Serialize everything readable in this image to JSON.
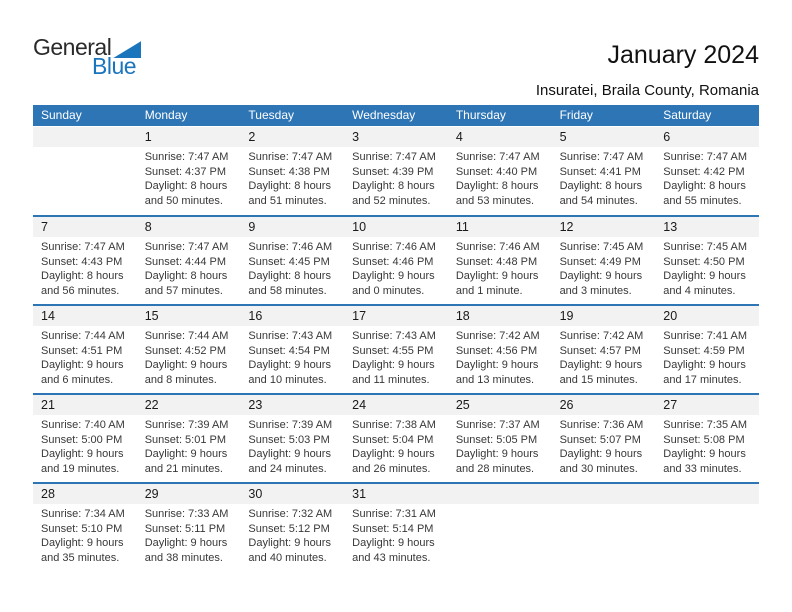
{
  "logo": {
    "general": "General",
    "blue": "Blue",
    "triangle_color": "#1b75bc"
  },
  "header": {
    "title": "January 2024",
    "subtitle": "Insuratei, Braila County, Romania"
  },
  "colors": {
    "header_bg": "#2E75B6",
    "week_divider": "#2E75B6",
    "day_band_bg": "#F2F2F2",
    "logo_blue": "#1b75bc"
  },
  "calendar": {
    "weekdays": [
      "Sunday",
      "Monday",
      "Tuesday",
      "Wednesday",
      "Thursday",
      "Friday",
      "Saturday"
    ],
    "weeks": [
      [
        {
          "day": "",
          "sunrise": "",
          "sunset": "",
          "daylight": ""
        },
        {
          "day": "1",
          "sunrise": "Sunrise: 7:47 AM",
          "sunset": "Sunset: 4:37 PM",
          "daylight": "Daylight: 8 hours and 50 minutes."
        },
        {
          "day": "2",
          "sunrise": "Sunrise: 7:47 AM",
          "sunset": "Sunset: 4:38 PM",
          "daylight": "Daylight: 8 hours and 51 minutes."
        },
        {
          "day": "3",
          "sunrise": "Sunrise: 7:47 AM",
          "sunset": "Sunset: 4:39 PM",
          "daylight": "Daylight: 8 hours and 52 minutes."
        },
        {
          "day": "4",
          "sunrise": "Sunrise: 7:47 AM",
          "sunset": "Sunset: 4:40 PM",
          "daylight": "Daylight: 8 hours and 53 minutes."
        },
        {
          "day": "5",
          "sunrise": "Sunrise: 7:47 AM",
          "sunset": "Sunset: 4:41 PM",
          "daylight": "Daylight: 8 hours and 54 minutes."
        },
        {
          "day": "6",
          "sunrise": "Sunrise: 7:47 AM",
          "sunset": "Sunset: 4:42 PM",
          "daylight": "Daylight: 8 hours and 55 minutes."
        }
      ],
      [
        {
          "day": "7",
          "sunrise": "Sunrise: 7:47 AM",
          "sunset": "Sunset: 4:43 PM",
          "daylight": "Daylight: 8 hours and 56 minutes."
        },
        {
          "day": "8",
          "sunrise": "Sunrise: 7:47 AM",
          "sunset": "Sunset: 4:44 PM",
          "daylight": "Daylight: 8 hours and 57 minutes."
        },
        {
          "day": "9",
          "sunrise": "Sunrise: 7:46 AM",
          "sunset": "Sunset: 4:45 PM",
          "daylight": "Daylight: 8 hours and 58 minutes."
        },
        {
          "day": "10",
          "sunrise": "Sunrise: 7:46 AM",
          "sunset": "Sunset: 4:46 PM",
          "daylight": "Daylight: 9 hours and 0 minutes."
        },
        {
          "day": "11",
          "sunrise": "Sunrise: 7:46 AM",
          "sunset": "Sunset: 4:48 PM",
          "daylight": "Daylight: 9 hours and 1 minute."
        },
        {
          "day": "12",
          "sunrise": "Sunrise: 7:45 AM",
          "sunset": "Sunset: 4:49 PM",
          "daylight": "Daylight: 9 hours and 3 minutes."
        },
        {
          "day": "13",
          "sunrise": "Sunrise: 7:45 AM",
          "sunset": "Sunset: 4:50 PM",
          "daylight": "Daylight: 9 hours and 4 minutes."
        }
      ],
      [
        {
          "day": "14",
          "sunrise": "Sunrise: 7:44 AM",
          "sunset": "Sunset: 4:51 PM",
          "daylight": "Daylight: 9 hours and 6 minutes."
        },
        {
          "day": "15",
          "sunrise": "Sunrise: 7:44 AM",
          "sunset": "Sunset: 4:52 PM",
          "daylight": "Daylight: 9 hours and 8 minutes."
        },
        {
          "day": "16",
          "sunrise": "Sunrise: 7:43 AM",
          "sunset": "Sunset: 4:54 PM",
          "daylight": "Daylight: 9 hours and 10 minutes."
        },
        {
          "day": "17",
          "sunrise": "Sunrise: 7:43 AM",
          "sunset": "Sunset: 4:55 PM",
          "daylight": "Daylight: 9 hours and 11 minutes."
        },
        {
          "day": "18",
          "sunrise": "Sunrise: 7:42 AM",
          "sunset": "Sunset: 4:56 PM",
          "daylight": "Daylight: 9 hours and 13 minutes."
        },
        {
          "day": "19",
          "sunrise": "Sunrise: 7:42 AM",
          "sunset": "Sunset: 4:57 PM",
          "daylight": "Daylight: 9 hours and 15 minutes."
        },
        {
          "day": "20",
          "sunrise": "Sunrise: 7:41 AM",
          "sunset": "Sunset: 4:59 PM",
          "daylight": "Daylight: 9 hours and 17 minutes."
        }
      ],
      [
        {
          "day": "21",
          "sunrise": "Sunrise: 7:40 AM",
          "sunset": "Sunset: 5:00 PM",
          "daylight": "Daylight: 9 hours and 19 minutes."
        },
        {
          "day": "22",
          "sunrise": "Sunrise: 7:39 AM",
          "sunset": "Sunset: 5:01 PM",
          "daylight": "Daylight: 9 hours and 21 minutes."
        },
        {
          "day": "23",
          "sunrise": "Sunrise: 7:39 AM",
          "sunset": "Sunset: 5:03 PM",
          "daylight": "Daylight: 9 hours and 24 minutes."
        },
        {
          "day": "24",
          "sunrise": "Sunrise: 7:38 AM",
          "sunset": "Sunset: 5:04 PM",
          "daylight": "Daylight: 9 hours and 26 minutes."
        },
        {
          "day": "25",
          "sunrise": "Sunrise: 7:37 AM",
          "sunset": "Sunset: 5:05 PM",
          "daylight": "Daylight: 9 hours and 28 minutes."
        },
        {
          "day": "26",
          "sunrise": "Sunrise: 7:36 AM",
          "sunset": "Sunset: 5:07 PM",
          "daylight": "Daylight: 9 hours and 30 minutes."
        },
        {
          "day": "27",
          "sunrise": "Sunrise: 7:35 AM",
          "sunset": "Sunset: 5:08 PM",
          "daylight": "Daylight: 9 hours and 33 minutes."
        }
      ],
      [
        {
          "day": "28",
          "sunrise": "Sunrise: 7:34 AM",
          "sunset": "Sunset: 5:10 PM",
          "daylight": "Daylight: 9 hours and 35 minutes."
        },
        {
          "day": "29",
          "sunrise": "Sunrise: 7:33 AM",
          "sunset": "Sunset: 5:11 PM",
          "daylight": "Daylight: 9 hours and 38 minutes."
        },
        {
          "day": "30",
          "sunrise": "Sunrise: 7:32 AM",
          "sunset": "Sunset: 5:12 PM",
          "daylight": "Daylight: 9 hours and 40 minutes."
        },
        {
          "day": "31",
          "sunrise": "Sunrise: 7:31 AM",
          "sunset": "Sunset: 5:14 PM",
          "daylight": "Daylight: 9 hours and 43 minutes."
        },
        {
          "day": "",
          "sunrise": "",
          "sunset": "",
          "daylight": ""
        },
        {
          "day": "",
          "sunrise": "",
          "sunset": "",
          "daylight": ""
        },
        {
          "day": "",
          "sunrise": "",
          "sunset": "",
          "daylight": ""
        }
      ]
    ]
  }
}
